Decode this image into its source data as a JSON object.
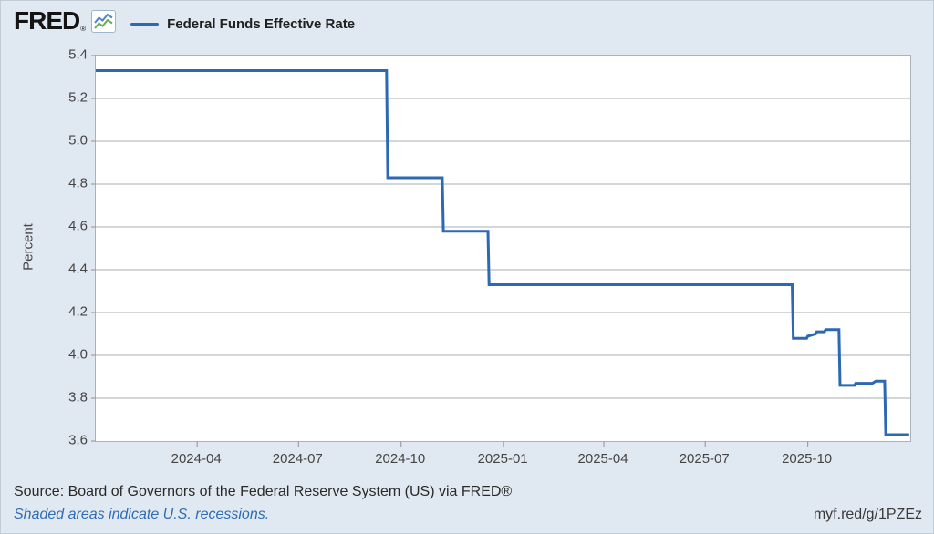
{
  "header": {
    "logo_text": "FRED",
    "logo_reg": "®",
    "legend": {
      "label": "Federal Funds Effective Rate"
    }
  },
  "chart_data": {
    "type": "line",
    "step": true,
    "title": "",
    "ylabel": "Percent",
    "xlabel": "",
    "ylim": [
      3.6,
      5.4
    ],
    "y_ticks": [
      5.4,
      5.2,
      5.0,
      4.8,
      4.6,
      4.4,
      4.2,
      4.0,
      3.8,
      3.6
    ],
    "x_range": [
      "2024-01-01",
      "2026-01-01"
    ],
    "x_ticks": [
      {
        "date": "2024-04-01",
        "label": "2024-04"
      },
      {
        "date": "2024-07-01",
        "label": "2024-07"
      },
      {
        "date": "2024-10-01",
        "label": "2024-10"
      },
      {
        "date": "2025-01-01",
        "label": "2025-01"
      },
      {
        "date": "2025-04-01",
        "label": "2025-04"
      },
      {
        "date": "2025-07-01",
        "label": "2025-07"
      },
      {
        "date": "2025-10-01",
        "label": "2025-10"
      }
    ],
    "grid": "horizontal",
    "legend_position": "top-left",
    "series": [
      {
        "name": "Federal Funds Effective Rate",
        "color": "#2d68b5",
        "points": [
          [
            "2024-01-01",
            5.33
          ],
          [
            "2024-09-18",
            5.33
          ],
          [
            "2024-09-19",
            4.83
          ],
          [
            "2024-11-07",
            4.83
          ],
          [
            "2024-11-08",
            4.58
          ],
          [
            "2024-12-18",
            4.58
          ],
          [
            "2024-12-19",
            4.33
          ],
          [
            "2025-09-17",
            4.33
          ],
          [
            "2025-09-18",
            4.08
          ],
          [
            "2025-09-30",
            4.08
          ],
          [
            "2025-10-01",
            4.09
          ],
          [
            "2025-10-08",
            4.1
          ],
          [
            "2025-10-09",
            4.11
          ],
          [
            "2025-10-16",
            4.11
          ],
          [
            "2025-10-17",
            4.12
          ],
          [
            "2025-10-29",
            4.12
          ],
          [
            "2025-10-30",
            3.86
          ],
          [
            "2025-11-12",
            3.86
          ],
          [
            "2025-11-13",
            3.87
          ],
          [
            "2025-11-28",
            3.87
          ],
          [
            "2025-12-01",
            3.88
          ],
          [
            "2025-12-09",
            3.88
          ],
          [
            "2025-12-10",
            3.63
          ],
          [
            "2025-12-31",
            3.63
          ]
        ]
      }
    ]
  },
  "footer": {
    "source": "Source: Board of Governors of the Federal Reserve System (US) via FRED®",
    "note": "Shaded areas indicate U.S. recessions.",
    "short_url": "myf.red/g/1PZEz"
  },
  "colors": {
    "background": "#e0e8f1",
    "plot_background": "#ffffff",
    "line": "#2d68b5",
    "gridline": "#c6cacd",
    "axis": "#9aa0a6",
    "frame": "#abb2b9",
    "tick_text": "#454545",
    "link_blue": "#2e6db4",
    "icon_blue": "#4a86c5",
    "icon_green": "#66b04b"
  }
}
